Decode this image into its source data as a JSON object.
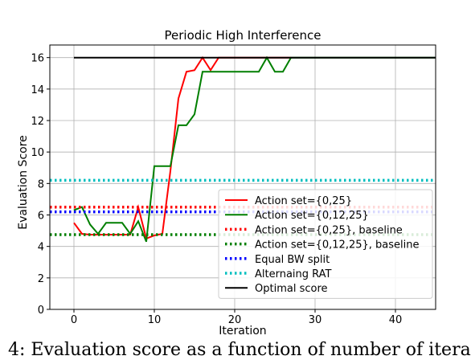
{
  "caption": "4: Evaluation score as a function of number of itera",
  "chart_data": {
    "type": "line",
    "title": "Periodic High Interference",
    "xlabel": "Iteration",
    "ylabel": "Evaluation Score",
    "xlim": [
      -3,
      45
    ],
    "ylim": [
      0,
      16.8
    ],
    "xticks": [
      0,
      10,
      20,
      30,
      40
    ],
    "yticks": [
      0,
      2,
      4,
      6,
      8,
      10,
      12,
      14,
      16
    ],
    "grid": true,
    "legend_position": "lower-right",
    "series": [
      {
        "name": "Action set={0,25}",
        "color": "#ff0000",
        "dash": "solid",
        "x": [
          0,
          1,
          2,
          3,
          4,
          5,
          6,
          7,
          8,
          9,
          10,
          11,
          12,
          13,
          14,
          15,
          16,
          17,
          18,
          19,
          20,
          21,
          22,
          23,
          24,
          25,
          26,
          27
        ],
        "y": [
          5.5,
          4.8,
          4.75,
          4.75,
          4.75,
          4.75,
          4.75,
          4.75,
          6.5,
          4.5,
          4.7,
          4.8,
          8.8,
          13.4,
          15.1,
          15.2,
          16.0,
          15.2,
          16.0,
          16.0,
          16.0,
          16.0,
          16.0,
          16.0,
          16.0,
          16.0,
          16.0,
          16.0
        ]
      },
      {
        "name": "Action set={0,12,25}",
        "color": "#007f00",
        "dash": "solid",
        "x": [
          0,
          1,
          2,
          3,
          4,
          5,
          6,
          7,
          8,
          9,
          10,
          11,
          12,
          13,
          14,
          15,
          16,
          17,
          18,
          19,
          20,
          21,
          22,
          23,
          24,
          25,
          26,
          27,
          28,
          30,
          35,
          40,
          45
        ],
        "y": [
          6.3,
          6.5,
          5.4,
          4.8,
          5.5,
          5.5,
          5.5,
          4.8,
          5.6,
          4.3,
          9.1,
          9.1,
          9.1,
          11.7,
          11.7,
          12.4,
          15.1,
          15.1,
          15.1,
          15.1,
          15.1,
          15.1,
          15.1,
          15.1,
          16.0,
          15.1,
          15.1,
          16.0,
          16.0,
          16.0,
          16.0,
          16.0,
          16.0
        ]
      },
      {
        "name": "Action set={0,25}, baseline",
        "color": "#ff0000",
        "dash": "dotted",
        "x": [
          -3,
          45
        ],
        "y": [
          6.5,
          6.5
        ]
      },
      {
        "name": "Action set={0,12,25}, baseline",
        "color": "#007f00",
        "dash": "dotted",
        "x": [
          -3,
          45
        ],
        "y": [
          4.75,
          4.75
        ]
      },
      {
        "name": "Equal BW split",
        "color": "#0000ff",
        "dash": "dotted",
        "x": [
          -3,
          45
        ],
        "y": [
          6.2,
          6.2
        ]
      },
      {
        "name": "Alternaing RAT",
        "color": "#00bfbf",
        "dash": "dotted",
        "x": [
          -3,
          45
        ],
        "y": [
          8.2,
          8.2
        ]
      },
      {
        "name": "Optimal score",
        "color": "#000000",
        "dash": "solid",
        "x": [
          0,
          45
        ],
        "y": [
          16.0,
          16.0
        ]
      }
    ]
  }
}
